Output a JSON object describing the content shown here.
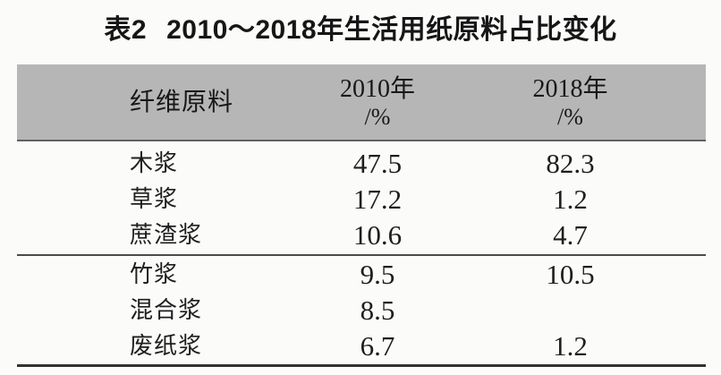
{
  "caption": {
    "label": "表2",
    "text": "2010～2018年生活用纸原料占比变化"
  },
  "table": {
    "columns": [
      {
        "label": "纤维原料",
        "sub": ""
      },
      {
        "label": "2010年",
        "sub": "/%"
      },
      {
        "label": "2018年",
        "sub": "/%"
      }
    ],
    "groups": [
      {
        "rows": [
          [
            "木浆",
            "47.5",
            "82.3"
          ],
          [
            "草浆",
            "17.2",
            "1.2"
          ],
          [
            "蔗渣浆",
            "10.6",
            "4.7"
          ]
        ]
      },
      {
        "rows": [
          [
            "竹浆",
            "9.5",
            "10.5"
          ],
          [
            "混合浆",
            "8.5",
            ""
          ],
          [
            "废纸浆",
            "6.7",
            "1.2"
          ]
        ]
      }
    ]
  },
  "colors": {
    "header_bg": "#b6b6b6",
    "rule_mid": "#4b4b4b",
    "rule_bottom": "#333333",
    "text": "#1e1e1e",
    "background": "#fbfbfa"
  },
  "chart_data": {
    "type": "table",
    "title": "表2 2010～2018年生活用纸原料占比变化",
    "columns": [
      "纤维原料",
      "2010年/%",
      "2018年/%"
    ],
    "rows": [
      {
        "material": "木浆",
        "y2010": 47.5,
        "y2018": 82.3
      },
      {
        "material": "草浆",
        "y2010": 17.2,
        "y2018": 1.2
      },
      {
        "material": "蔗渣浆",
        "y2010": 10.6,
        "y2018": 4.7
      },
      {
        "material": "竹浆",
        "y2010": 9.5,
        "y2018": 10.5
      },
      {
        "material": "混合浆",
        "y2010": 8.5,
        "y2018": null
      },
      {
        "material": "废纸浆",
        "y2010": 6.7,
        "y2018": 1.2
      }
    ]
  }
}
